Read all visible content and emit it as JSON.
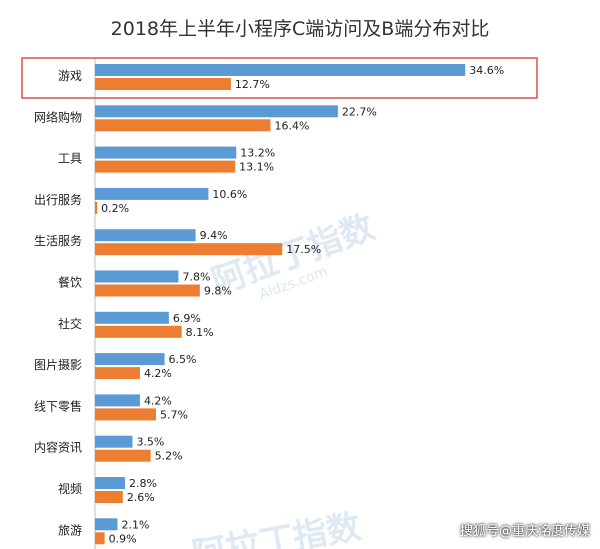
{
  "chart_data": {
    "type": "bar",
    "orientation": "horizontal",
    "title": "2018年上半年小程序C端访问及B端分布对比",
    "categories": [
      "游戏",
      "网络购物",
      "工具",
      "出行服务",
      "生活服务",
      "餐饮",
      "社交",
      "图片摄影",
      "线下零售",
      "内容资讯",
      "视频",
      "旅游"
    ],
    "series": [
      {
        "values": [
          34.6,
          22.7,
          13.2,
          10.6,
          9.4,
          7.8,
          6.9,
          6.5,
          4.2,
          3.5,
          2.8,
          2.1
        ],
        "labels": [
          "34.6%",
          "22.7%",
          "13.2%",
          "10.6%",
          "9.4%",
          "7.8%",
          "6.9%",
          "6.5%",
          "4.2%",
          "3.5%",
          "2.8%",
          "2.1%"
        ],
        "color": "#5b9bd5"
      },
      {
        "values": [
          12.7,
          16.4,
          13.1,
          0.2,
          17.5,
          9.8,
          8.1,
          4.2,
          5.7,
          5.2,
          2.6,
          0.9
        ],
        "labels": [
          "12.7%",
          "16.4%",
          "13.1%",
          "0.2%",
          "17.5%",
          "9.8%",
          "8.1%",
          "4.2%",
          "5.7%",
          "5.2%",
          "2.6%",
          "0.9%"
        ],
        "color": "#ed7d31"
      }
    ],
    "xlim": [
      0,
      40
    ],
    "highlight_category": "游戏",
    "highlight_color": "#d9534f",
    "grid": false,
    "legend": "none"
  },
  "watermark": {
    "text": "阿拉丁指数",
    "sub": "Aldzs.com"
  },
  "footer": {
    "credit": "搜狐号@重庆洺度传媒"
  }
}
